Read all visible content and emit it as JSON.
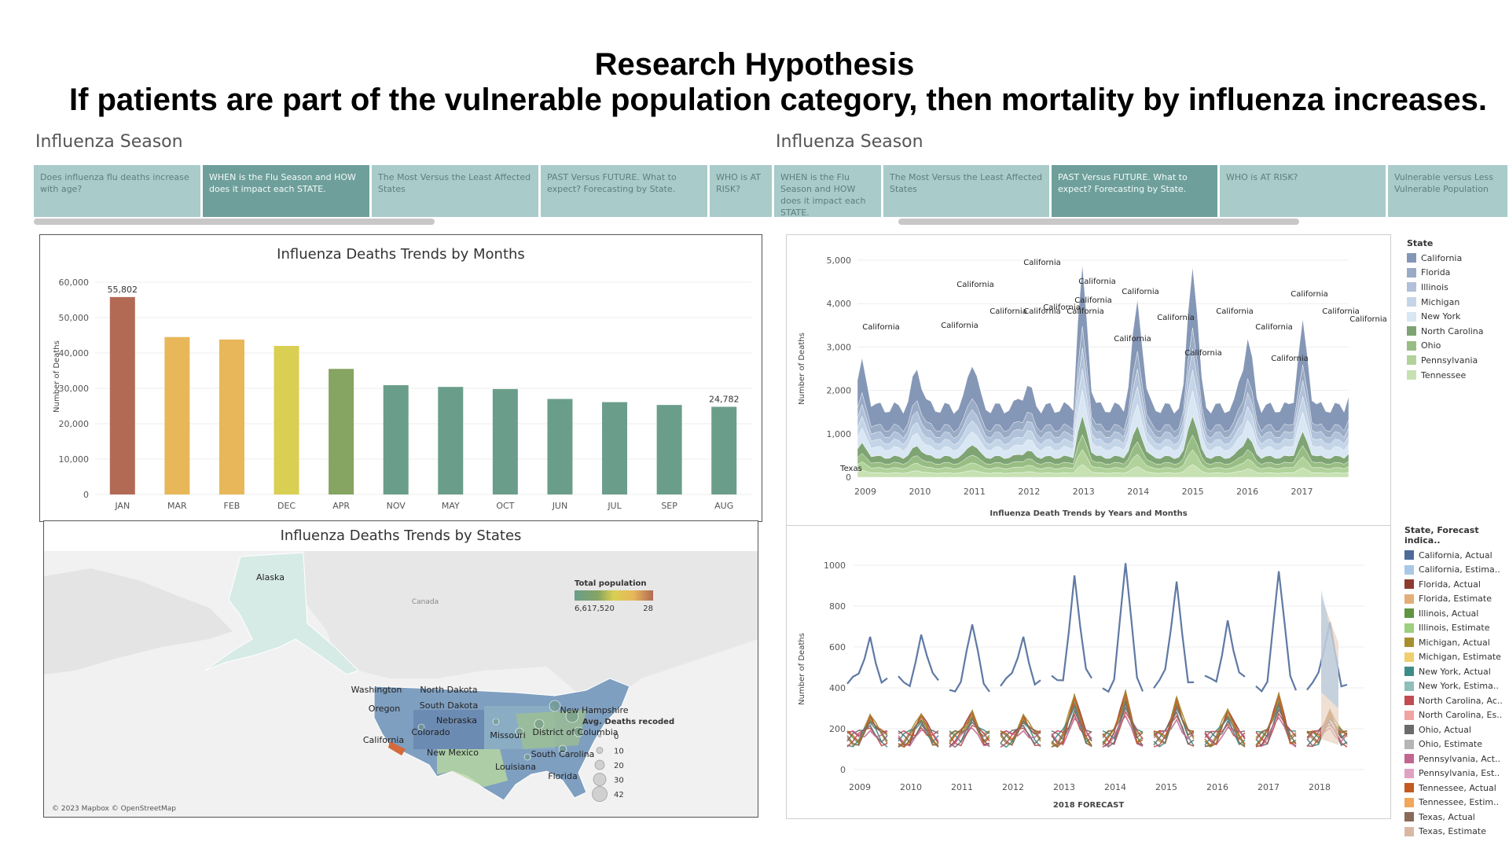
{
  "heading": {
    "line1": "Research Hypothesis",
    "line2": "If patients are part of the vulnerable population category, then mortality by influenza increases."
  },
  "left": {
    "season_title": "Influenza Season",
    "tabs": [
      {
        "label": "Does influenza flu deaths increase with age?",
        "active": false
      },
      {
        "label": "WHEN is the Flu Season and HOW does it impact each STATE.",
        "active": true
      },
      {
        "label": "The Most Versus the Least Affected States",
        "active": false
      },
      {
        "label": "PAST Versus FUTURE. What to expect? Forecasting by State.",
        "active": false
      },
      {
        "label": "WHO is AT RISK?",
        "active": false
      }
    ]
  },
  "right": {
    "season_title": "Influenza Season",
    "tabs": [
      {
        "label": "WHEN is the Flu Season and HOW does it impact each STATE.",
        "active": false
      },
      {
        "label": "The Most Versus the Least Affected States",
        "active": false
      },
      {
        "label": "PAST Versus FUTURE. What to expect? Forecasting by State.",
        "active": true
      },
      {
        "label": "WHO is AT RISK?",
        "active": false
      },
      {
        "label": "Vulnerable versus Less Vulnerable Population",
        "active": false
      }
    ]
  },
  "colors": {
    "bar_high": "#b26a55",
    "bar_mid": "#e8b75a",
    "bar_yellow": "#d9cf52",
    "bar_olive": "#86a462",
    "bar_low": "#6a9e8a"
  },
  "chart_data": [
    {
      "type": "bar",
      "title": "Influenza Deaths Trends by Months",
      "ylabel": "Number of Deaths",
      "categories": [
        "JAN",
        "MAR",
        "FEB",
        "DEC",
        "APR",
        "NOV",
        "MAY",
        "OCT",
        "JUN",
        "JUL",
        "SEP",
        "AUG"
      ],
      "values": [
        55802,
        44500,
        43800,
        42000,
        35500,
        30900,
        30400,
        29800,
        27000,
        26100,
        25300,
        24782
      ],
      "data_labels": {
        "JAN": "55,802",
        "AUG": "24,782"
      },
      "ylim": [
        0,
        60000
      ],
      "yticks": [
        "0",
        "10,000",
        "20,000",
        "30,000",
        "40,000",
        "50,000",
        "60,000"
      ]
    },
    {
      "type": "map",
      "title": "Influenza Deaths Trends by States",
      "labels": [
        "Alaska",
        "Canada",
        "Washington",
        "North Dakota",
        "South Dakota",
        "Oregon",
        "Nebraska",
        "Colorado",
        "Missouri",
        "New Hampshire",
        "District of Columbia",
        "California",
        "New Mexico",
        "South Carolina",
        "Louisiana",
        "Florida"
      ],
      "color_legend": {
        "title": "Total population",
        "min_label": "6,617,520",
        "max_label": "28"
      },
      "size_legend": {
        "title": "Avg. Deaths recoded",
        "values": [
          "0",
          "10",
          "20",
          "30",
          "42"
        ]
      },
      "attribution": "© 2023 Mapbox © OpenStreetMap"
    },
    {
      "type": "area",
      "xlabel": "Influenza Death Trends by Years and Months",
      "ylabel": "Number of Deaths",
      "ylim": [
        0,
        5000
      ],
      "yticks": [
        "0",
        "1,000",
        "2,000",
        "3,000",
        "4,000",
        "5,000"
      ],
      "xticks": [
        "2009",
        "2010",
        "2011",
        "2012",
        "2013",
        "2014",
        "2015",
        "2016",
        "2017"
      ],
      "legend_title": "State",
      "series": [
        {
          "name": "California",
          "color": "#8597b6"
        },
        {
          "name": "Florida",
          "color": "#9aabc6"
        },
        {
          "name": "Illinois",
          "color": "#b0c1d9"
        },
        {
          "name": "Michigan",
          "color": "#c5d5e8"
        },
        {
          "name": "New York",
          "color": "#d9e6f3"
        },
        {
          "name": "North Carolina",
          "color": "#7fa474"
        },
        {
          "name": "Ohio",
          "color": "#98bd84"
        },
        {
          "name": "Pennsylvania",
          "color": "#b1d39b"
        },
        {
          "name": "Tennessee",
          "color": "#c7e1b2"
        }
      ],
      "annotations": [
        "California",
        "California",
        "California",
        "California",
        "California",
        "California",
        "California",
        "California",
        "California",
        "California",
        "California",
        "California",
        "California",
        "California",
        "California",
        "California",
        "California",
        "California",
        "California",
        "California",
        "Texas"
      ],
      "california_peaks": [
        2600,
        2500,
        2700,
        2100,
        4750,
        4100,
        5000,
        3200,
        3500
      ]
    },
    {
      "type": "line",
      "xlabel": "2018 FORECAST",
      "ylabel": "Number of Deaths",
      "ylim": [
        0,
        1000
      ],
      "yticks": [
        "0",
        "200",
        "400",
        "600",
        "800",
        "1000"
      ],
      "xticks": [
        "2009",
        "2010",
        "2011",
        "2012",
        "2013",
        "2014",
        "2015",
        "2016",
        "2017",
        "2018"
      ],
      "legend_title": "State, Forecast indica..",
      "series": [
        {
          "name": "California, Actual",
          "color": "#4e6a9a"
        },
        {
          "name": "California, Estima..",
          "color": "#a9c8e6"
        },
        {
          "name": "Florida, Actual",
          "color": "#8e3b2f"
        },
        {
          "name": "Florida, Estimate",
          "color": "#e3ae7a"
        },
        {
          "name": "Illinois, Actual",
          "color": "#5f9443"
        },
        {
          "name": "Illinois, Estimate",
          "color": "#9ccf7e"
        },
        {
          "name": "Michigan, Actual",
          "color": "#a88f2d"
        },
        {
          "name": "Michigan, Estimate",
          "color": "#efcf6e"
        },
        {
          "name": "New York, Actual",
          "color": "#3e8c88"
        },
        {
          "name": "New York, Estima..",
          "color": "#8ebfb8"
        },
        {
          "name": "North Carolina, Ac..",
          "color": "#c14c52"
        },
        {
          "name": "North Carolina, Es..",
          "color": "#f0a3a1"
        },
        {
          "name": "Ohio, Actual",
          "color": "#6b6b6b"
        },
        {
          "name": "Ohio, Estimate",
          "color": "#b5b5b5"
        },
        {
          "name": "Pennsylvania, Act..",
          "color": "#c1668f"
        },
        {
          "name": "Pennsylvania, Est..",
          "color": "#dfa3c0"
        },
        {
          "name": "Tennessee, Actual",
          "color": "#c45a22"
        },
        {
          "name": "Tennessee, Estim..",
          "color": "#f2a65a"
        },
        {
          "name": "Texas, Actual",
          "color": "#8a6a58"
        },
        {
          "name": "Texas, Estimate",
          "color": "#d9b9a4"
        }
      ],
      "california_peaks": [
        650,
        660,
        710,
        650,
        950,
        1010,
        920,
        730,
        970,
        720
      ]
    }
  ]
}
